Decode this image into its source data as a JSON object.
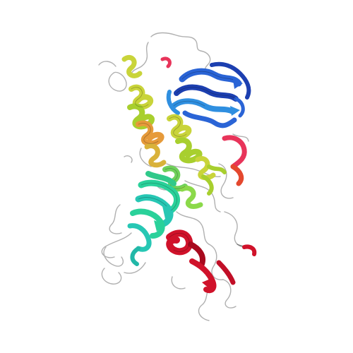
{
  "image": {
    "kind": "protein-structure-cartoon",
    "background": "#ffffff",
    "color_scheme": "rainbow",
    "palette": {
      "blue": "#2a64d6",
      "blue_dark": "#1c3fb0",
      "cyan_blue": "#2f8fe0",
      "yellow": "#c9d43a",
      "yellow_green": "#a8cf2e",
      "orange": "#e69a3a",
      "green": "#6fd15a",
      "teal": "#2ad19a",
      "cyan": "#27c7b4",
      "red": "#d0122a",
      "dark_red": "#a80a1e",
      "pink_red": "#e8345a",
      "coil": "#b0b0b0"
    }
  }
}
